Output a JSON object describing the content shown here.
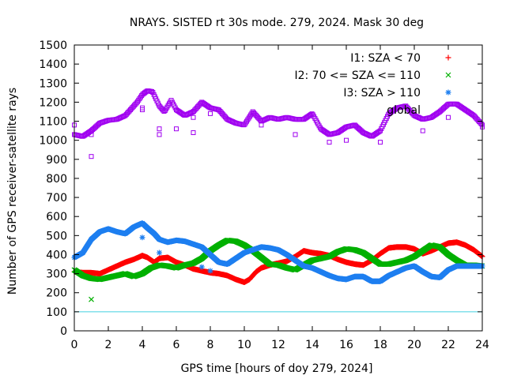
{
  "chart_data": {
    "type": "scatter",
    "title": "NRAYS. SISTED rt 30s mode. 279, 2024. Mask 30 deg",
    "xlabel": "GPS time [hours of doy 279, 2024]",
    "ylabel": "Number of GPS receiver-satellite rays",
    "xlim": [
      0,
      24
    ],
    "ylim": [
      0,
      1500
    ],
    "x_ticks": [
      0,
      2,
      4,
      6,
      8,
      10,
      12,
      14,
      16,
      18,
      20,
      22,
      24
    ],
    "y_ticks": [
      0,
      100,
      200,
      300,
      400,
      500,
      600,
      700,
      800,
      900,
      1000,
      1100,
      1200,
      1300,
      1400,
      1500
    ],
    "legend_position": "top-right",
    "reference_line": {
      "y": 100,
      "color": "#40d0e0"
    },
    "series": [
      {
        "name": "I1: SZA < 70",
        "marker": "+",
        "color": "#ff0000",
        "points": [
          [
            0,
            310
          ],
          [
            0.5,
            305
          ],
          [
            1,
            305
          ],
          [
            1.5,
            300
          ],
          [
            2,
            320
          ],
          [
            2.5,
            340
          ],
          [
            3,
            360
          ],
          [
            3.5,
            375
          ],
          [
            4,
            395
          ],
          [
            4.3,
            385
          ],
          [
            4.7,
            360
          ],
          [
            5,
            380
          ],
          [
            5.5,
            385
          ],
          [
            6,
            360
          ],
          [
            6.5,
            345
          ],
          [
            7,
            325
          ],
          [
            7.5,
            315
          ],
          [
            8,
            305
          ],
          [
            8.5,
            300
          ],
          [
            9,
            290
          ],
          [
            9.5,
            270
          ],
          [
            10,
            255
          ],
          [
            10.3,
            270
          ],
          [
            10.7,
            310
          ],
          [
            11,
            330
          ],
          [
            11.5,
            345
          ],
          [
            12,
            355
          ],
          [
            12.5,
            365
          ],
          [
            13,
            390
          ],
          [
            13.5,
            420
          ],
          [
            14,
            410
          ],
          [
            14.5,
            405
          ],
          [
            15,
            395
          ],
          [
            15.5,
            375
          ],
          [
            16,
            360
          ],
          [
            16.5,
            350
          ],
          [
            17,
            345
          ],
          [
            17.5,
            370
          ],
          [
            18,
            405
          ],
          [
            18.5,
            435
          ],
          [
            19,
            440
          ],
          [
            19.5,
            440
          ],
          [
            20,
            430
          ],
          [
            20.5,
            405
          ],
          [
            21,
            420
          ],
          [
            21.5,
            440
          ],
          [
            22,
            460
          ],
          [
            22.5,
            465
          ],
          [
            23,
            450
          ],
          [
            23.5,
            425
          ],
          [
            24,
            390
          ]
        ]
      },
      {
        "name": "I2: 70 <= SZA <= 110",
        "marker": "x",
        "color": "#00b000",
        "points": [
          [
            0,
            320
          ],
          [
            0.5,
            290
          ],
          [
            1,
            275
          ],
          [
            1.5,
            270
          ],
          [
            2,
            280
          ],
          [
            2.5,
            290
          ],
          [
            3,
            300
          ],
          [
            3.5,
            285
          ],
          [
            4,
            300
          ],
          [
            4.5,
            330
          ],
          [
            5,
            345
          ],
          [
            5.5,
            340
          ],
          [
            6,
            330
          ],
          [
            6.5,
            345
          ],
          [
            7,
            355
          ],
          [
            7.5,
            380
          ],
          [
            8,
            420
          ],
          [
            8.5,
            450
          ],
          [
            9,
            475
          ],
          [
            9.5,
            470
          ],
          [
            10,
            450
          ],
          [
            10.5,
            420
          ],
          [
            11,
            385
          ],
          [
            11.5,
            350
          ],
          [
            12,
            345
          ],
          [
            12.5,
            330
          ],
          [
            13,
            320
          ],
          [
            13.5,
            345
          ],
          [
            14,
            370
          ],
          [
            14.5,
            380
          ],
          [
            15,
            390
          ],
          [
            15.5,
            415
          ],
          [
            16,
            430
          ],
          [
            16.5,
            425
          ],
          [
            17,
            410
          ],
          [
            17.5,
            380
          ],
          [
            18,
            350
          ],
          [
            18.5,
            350
          ],
          [
            19,
            360
          ],
          [
            19.5,
            370
          ],
          [
            20,
            390
          ],
          [
            20.5,
            420
          ],
          [
            21,
            450
          ],
          [
            21.5,
            440
          ],
          [
            22,
            400
          ],
          [
            22.5,
            370
          ],
          [
            23,
            345
          ],
          [
            23.5,
            345
          ],
          [
            24,
            340
          ]
        ],
        "outliers": [
          [
            1,
            165
          ]
        ]
      },
      {
        "name": "I3: SZA > 110",
        "marker": "*",
        "color": "#1e7ff0",
        "points": [
          [
            0,
            385
          ],
          [
            0.5,
            410
          ],
          [
            1,
            480
          ],
          [
            1.5,
            520
          ],
          [
            2,
            535
          ],
          [
            2.5,
            520
          ],
          [
            3,
            510
          ],
          [
            3.5,
            545
          ],
          [
            4,
            565
          ],
          [
            4.3,
            540
          ],
          [
            4.7,
            510
          ],
          [
            5,
            480
          ],
          [
            5.5,
            465
          ],
          [
            6,
            475
          ],
          [
            6.5,
            470
          ],
          [
            7,
            455
          ],
          [
            7.5,
            440
          ],
          [
            8,
            400
          ],
          [
            8.5,
            360
          ],
          [
            9,
            350
          ],
          [
            9.5,
            380
          ],
          [
            10,
            410
          ],
          [
            10.5,
            425
          ],
          [
            11,
            440
          ],
          [
            11.5,
            435
          ],
          [
            12,
            425
          ],
          [
            12.5,
            400
          ],
          [
            13,
            370
          ],
          [
            13.5,
            340
          ],
          [
            14,
            330
          ],
          [
            14.5,
            310
          ],
          [
            15,
            290
          ],
          [
            15.5,
            275
          ],
          [
            16,
            270
          ],
          [
            16.5,
            285
          ],
          [
            17,
            285
          ],
          [
            17.5,
            260
          ],
          [
            18,
            260
          ],
          [
            18.5,
            290
          ],
          [
            19,
            310
          ],
          [
            19.5,
            330
          ],
          [
            20,
            340
          ],
          [
            20.5,
            310
          ],
          [
            21,
            285
          ],
          [
            21.5,
            280
          ],
          [
            22,
            320
          ],
          [
            22.5,
            340
          ],
          [
            23,
            340
          ],
          [
            23.5,
            340
          ],
          [
            24,
            340
          ]
        ],
        "outliers": [
          [
            4,
            490
          ],
          [
            5,
            410
          ],
          [
            7.5,
            335
          ],
          [
            8,
            315
          ]
        ]
      },
      {
        "name": "global",
        "marker": "square",
        "color": "#a000f0",
        "points": [
          [
            0,
            1030
          ],
          [
            0.5,
            1020
          ],
          [
            1,
            1050
          ],
          [
            1.5,
            1090
          ],
          [
            2,
            1105
          ],
          [
            2.5,
            1110
          ],
          [
            3,
            1130
          ],
          [
            3.3,
            1160
          ],
          [
            3.7,
            1200
          ],
          [
            4,
            1240
          ],
          [
            4.3,
            1260
          ],
          [
            4.6,
            1255
          ],
          [
            5,
            1180
          ],
          [
            5.3,
            1150
          ],
          [
            5.7,
            1210
          ],
          [
            6,
            1160
          ],
          [
            6.5,
            1130
          ],
          [
            7,
            1150
          ],
          [
            7.5,
            1200
          ],
          [
            8,
            1170
          ],
          [
            8.5,
            1160
          ],
          [
            9,
            1110
          ],
          [
            9.5,
            1090
          ],
          [
            10,
            1080
          ],
          [
            10.5,
            1150
          ],
          [
            11,
            1100
          ],
          [
            11.5,
            1120
          ],
          [
            12,
            1110
          ],
          [
            12.5,
            1120
          ],
          [
            13,
            1110
          ],
          [
            13.5,
            1110
          ],
          [
            14,
            1140
          ],
          [
            14.5,
            1060
          ],
          [
            15,
            1030
          ],
          [
            15.5,
            1040
          ],
          [
            16,
            1070
          ],
          [
            16.5,
            1080
          ],
          [
            17,
            1040
          ],
          [
            17.5,
            1020
          ],
          [
            18,
            1050
          ],
          [
            18.5,
            1140
          ],
          [
            19,
            1170
          ],
          [
            19.5,
            1180
          ],
          [
            20,
            1130
          ],
          [
            20.5,
            1110
          ],
          [
            21,
            1120
          ],
          [
            21.5,
            1150
          ],
          [
            22,
            1190
          ],
          [
            22.5,
            1190
          ],
          [
            23,
            1160
          ],
          [
            23.5,
            1130
          ],
          [
            24,
            1080
          ]
        ],
        "outliers": [
          [
            0,
            1080
          ],
          [
            1,
            915
          ],
          [
            1,
            1030
          ],
          [
            4,
            1160
          ],
          [
            4,
            1170
          ],
          [
            5,
            1060
          ],
          [
            5,
            1030
          ],
          [
            6,
            1060
          ],
          [
            7,
            1040
          ],
          [
            7,
            1120
          ],
          [
            8,
            1140
          ],
          [
            11,
            1080
          ],
          [
            13,
            1030
          ],
          [
            15,
            990
          ],
          [
            16,
            1000
          ],
          [
            18,
            990
          ],
          [
            20.5,
            1050
          ],
          [
            22,
            1120
          ],
          [
            24,
            1070
          ]
        ]
      }
    ]
  }
}
